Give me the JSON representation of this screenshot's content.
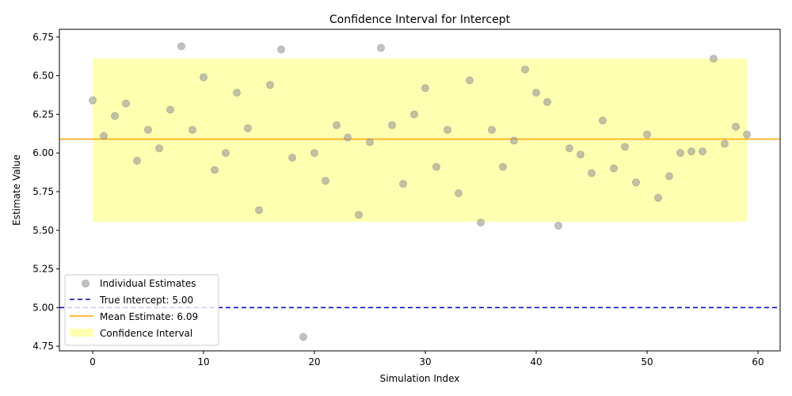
{
  "chart_data": {
    "type": "scatter",
    "title": "Confidence Interval for Intercept",
    "xlabel": "Simulation Index",
    "ylabel": "Estimate Value",
    "xlim": [
      -3,
      62
    ],
    "ylim": [
      4.72,
      6.8
    ],
    "xticks": [
      0,
      10,
      20,
      30,
      40,
      50,
      60
    ],
    "xtick_labels": [
      "0",
      "10",
      "20",
      "30",
      "40",
      "50",
      "60"
    ],
    "yticks": [
      4.75,
      5.0,
      5.25,
      5.5,
      5.75,
      6.0,
      6.25,
      6.5,
      6.75
    ],
    "ytick_labels": [
      "4.75",
      "5.00",
      "5.25",
      "5.50",
      "5.75",
      "6.00",
      "6.25",
      "6.50",
      "6.75"
    ],
    "grid": false,
    "legend_position": "lower-left",
    "series": [
      {
        "name": "Individual Estimates",
        "kind": "scatter",
        "color": "#999999",
        "x": [
          0,
          1,
          2,
          3,
          4,
          5,
          6,
          7,
          8,
          9,
          10,
          11,
          12,
          13,
          14,
          15,
          16,
          17,
          18,
          19,
          20,
          21,
          22,
          23,
          24,
          25,
          26,
          27,
          28,
          29,
          30,
          31,
          32,
          33,
          34,
          35,
          36,
          37,
          38,
          39,
          40,
          41,
          42,
          43,
          44,
          45,
          46,
          47,
          48,
          49,
          50,
          51,
          52,
          53,
          54,
          55,
          56,
          57,
          58,
          59
        ],
        "values": [
          6.34,
          6.11,
          6.24,
          6.32,
          5.95,
          6.15,
          6.03,
          6.28,
          6.69,
          6.15,
          6.49,
          5.89,
          6.0,
          6.39,
          6.16,
          5.63,
          6.44,
          6.67,
          5.97,
          4.81,
          6.0,
          5.82,
          6.18,
          6.1,
          5.6,
          6.07,
          6.68,
          6.18,
          5.8,
          6.25,
          6.42,
          5.91,
          6.15,
          5.74,
          6.47,
          5.55,
          6.15,
          5.91,
          6.08,
          6.54,
          6.39,
          6.33,
          5.53,
          6.03,
          5.99,
          5.87,
          6.21,
          5.9,
          6.04,
          5.81,
          6.12,
          5.71,
          5.85,
          6.0,
          6.01,
          6.01,
          6.61,
          6.06,
          6.17,
          6.12
        ]
      }
    ],
    "true_intercept": {
      "name": "True Intercept: 5.00",
      "value": 5.0,
      "color": "#0000cc",
      "style": "dashed"
    },
    "mean_estimate": {
      "name": "Mean Estimate: 6.09",
      "value": 6.09,
      "color": "#ffa500",
      "style": "solid"
    },
    "confidence_interval": {
      "name": "Confidence Interval",
      "lower": 5.555,
      "upper": 6.61,
      "x_start": 0,
      "x_end": 59,
      "color": "#ffff66"
    }
  }
}
